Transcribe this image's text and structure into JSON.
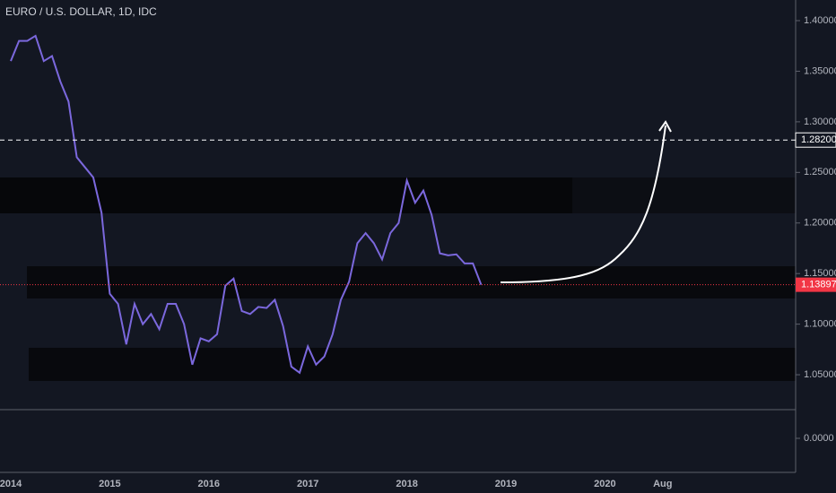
{
  "chart_data": {
    "type": "line",
    "title": "EURO / U.S. DOLLAR, 1D, IDC",
    "categories": [
      "2014",
      null,
      null,
      null,
      null,
      null,
      null,
      null,
      null,
      null,
      null,
      null,
      "2015",
      null,
      null,
      null,
      null,
      null,
      null,
      null,
      null,
      null,
      null,
      null,
      "2016",
      null,
      null,
      null,
      null,
      null,
      null,
      null,
      null,
      null,
      null,
      null,
      "2017",
      null,
      null,
      null,
      null,
      null,
      null,
      null,
      null,
      null,
      null,
      null,
      "2018",
      null,
      null,
      null,
      null,
      null,
      null,
      null,
      null,
      null,
      null,
      null,
      "2019",
      null,
      null,
      null,
      null,
      null,
      null,
      null,
      null,
      null,
      null,
      null,
      "2020",
      null,
      null,
      null,
      null,
      null,
      null,
      "Aug",
      null,
      null,
      null,
      null,
      null,
      null,
      null,
      null,
      null,
      null,
      null,
      null,
      null,
      null,
      null,
      null
    ],
    "series": [
      {
        "color": "#7b68dd",
        "values": [
          1.36,
          1.38,
          1.38,
          1.385,
          1.36,
          1.365,
          1.34,
          1.32,
          1.265,
          1.255,
          1.245,
          1.21,
          1.13,
          1.12,
          1.08,
          1.12,
          1.1,
          1.11,
          1.095,
          1.12,
          1.12,
          1.1,
          1.06,
          1.086,
          1.083,
          1.09,
          1.138,
          1.145,
          1.113,
          1.11,
          1.117,
          1.116,
          1.124,
          1.098,
          1.058,
          1.052,
          1.078,
          1.06,
          1.068,
          1.09,
          1.124,
          1.142,
          1.18,
          1.19,
          1.18,
          1.164,
          1.19,
          1.2,
          1.242,
          1.22,
          1.232,
          1.208,
          1.17,
          1.168,
          1.169,
          1.16,
          1.16,
          1.139,
          null,
          null,
          null,
          null,
          null,
          null,
          null,
          null,
          null,
          null,
          null,
          null,
          null,
          null,
          null,
          null,
          null,
          null,
          null,
          null,
          null,
          null,
          null,
          null,
          null,
          null,
          null,
          null,
          null,
          null,
          null,
          null,
          null,
          null,
          null,
          null,
          null,
          null
        ]
      }
    ],
    "ylim": [
      1.0155,
      1.4204
    ],
    "yticks": [
      {
        "value": 1.4,
        "label": "1.40000"
      },
      {
        "value": 1.35,
        "label": "1.35000"
      },
      {
        "value": 1.3,
        "label": "1.30000"
      },
      {
        "value": 1.25,
        "label": "1.25000"
      },
      {
        "value": 1.2,
        "label": "1.20000"
      },
      {
        "value": 1.15,
        "label": "1.15000"
      },
      {
        "value": 1.1,
        "label": "1.10000"
      },
      {
        "value": 1.05,
        "label": "1.05000"
      }
    ],
    "horizontal_line": {
      "value": 1.282,
      "label": "1.28200"
    },
    "last_price": {
      "value": 1.13897,
      "label": "1.13897",
      "color": "#f23645"
    },
    "lower_pane": {
      "yticks": [
        {
          "value": 0,
          "label": "0.0000"
        }
      ]
    }
  }
}
